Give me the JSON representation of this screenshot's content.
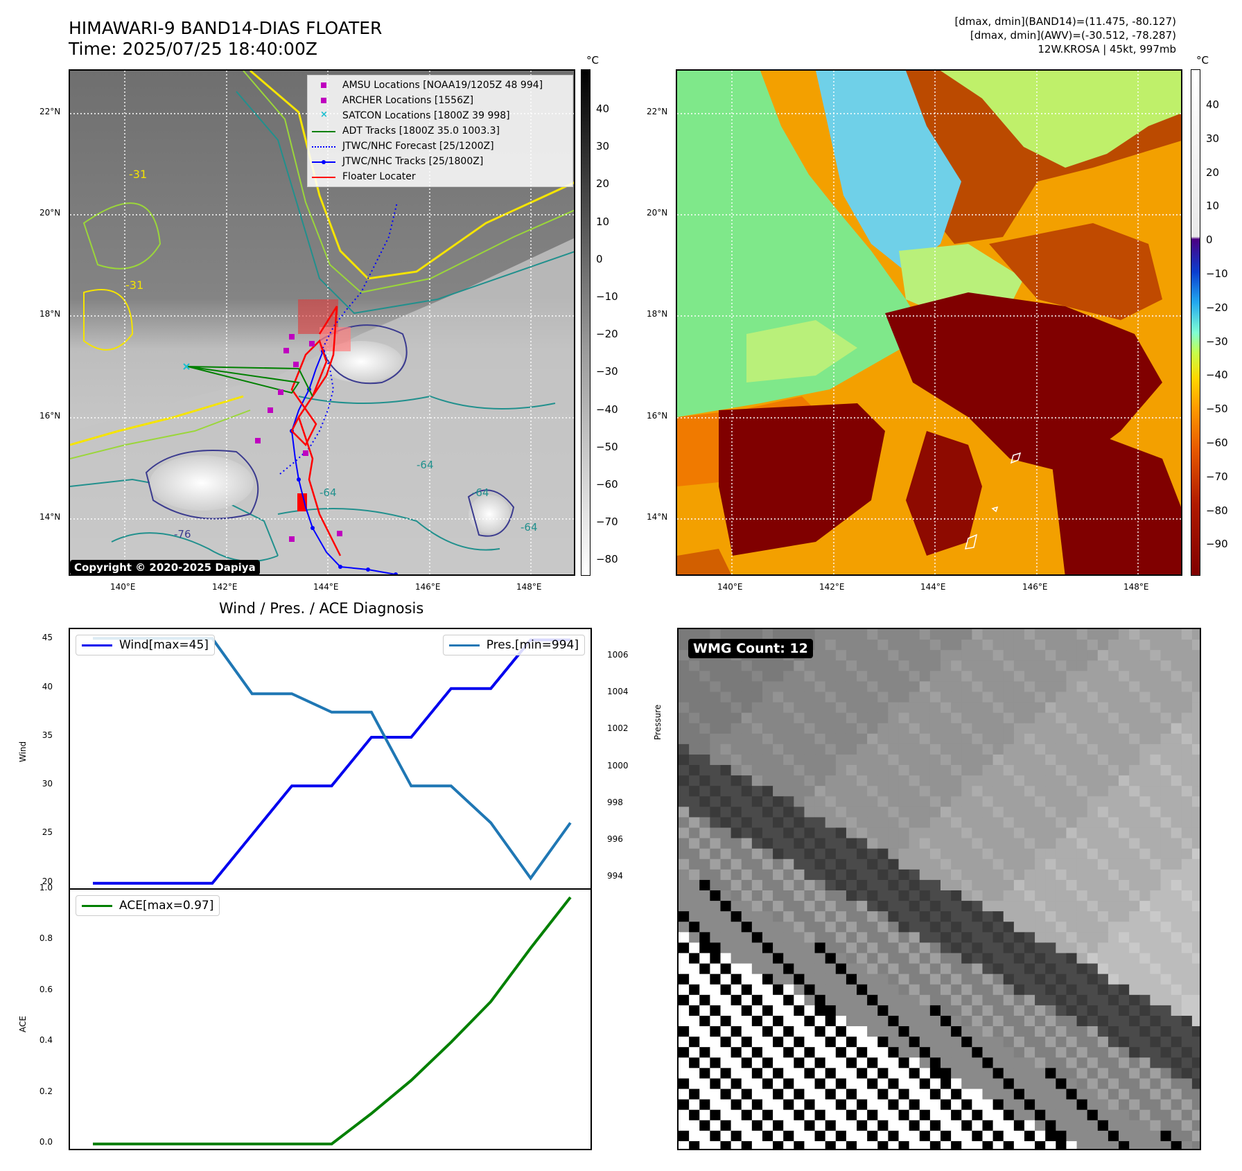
{
  "header": {
    "title_line1": "HIMAWARI-9 BAND14-DIAS FLOATER",
    "title_line2": "Time: 2025/07/25 18:40:00Z",
    "stats_line1": "[dmax, dmin](BAND14)=(11.475, -80.127)",
    "stats_line2": "[dmax, dmin](AWV)=(-30.512, -78.287)",
    "stats_line3": "12W.KROSA | 45kt, 997mb"
  },
  "map": {
    "lat_labels": [
      "22°N",
      "20°N",
      "18°N",
      "16°N",
      "14°N"
    ],
    "lon_labels": [
      "140°E",
      "142°E",
      "144°E",
      "146°E",
      "148°E"
    ],
    "copyright": "Copyright © 2020-2025 Dapiya",
    "legend": [
      {
        "label": "AMSU Locations [NOAA19/1205Z 48 994]",
        "kind": "square",
        "color": "#bf00bf"
      },
      {
        "label": "ARCHER Locations [1556Z]",
        "kind": "square",
        "color": "#bf00bf"
      },
      {
        "label": "SATCON Locations [1800Z 39 998]",
        "kind": "x",
        "color": "#17becf"
      },
      {
        "label": "ADT Tracks [1800Z 35.0 1003.3]",
        "kind": "line",
        "color": "#008000"
      },
      {
        "label": "JTWC/NHC Forecast [25/1200Z]",
        "kind": "dotted",
        "color": "#0000ff"
      },
      {
        "label": "JTWC/NHC Tracks [25/1800Z]",
        "kind": "line-dot",
        "color": "#0000ff"
      },
      {
        "label": "Floater Locater",
        "kind": "line",
        "color": "#ff0000"
      }
    ],
    "gray_colorbar": {
      "unit": "°C",
      "ticks": [
        "40",
        "30",
        "20",
        "10",
        "0",
        "−10",
        "−20",
        "−30",
        "−40",
        "−50",
        "−60",
        "−70",
        "−80"
      ]
    },
    "color_colorbar": {
      "unit": "°C",
      "ticks": [
        "40",
        "30",
        "20",
        "10",
        "0",
        "−10",
        "−20",
        "−30",
        "−40",
        "−50",
        "−60",
        "−70",
        "−80",
        "−90"
      ]
    },
    "contour_labels": [
      "-31",
      "-31",
      "-64",
      "-64",
      "-64",
      "-64",
      "-76"
    ]
  },
  "diagnosis": {
    "title": "Wind / Pres. / ACE Diagnosis",
    "wmg_label": "WMG Count: 12"
  },
  "chart_data": [
    {
      "type": "line",
      "title": "Wind / Pres. / ACE Diagnosis",
      "ylabel": "Wind",
      "ylabel_right": "Pressure",
      "ylim": [
        19.2,
        46.1
      ],
      "ylim_right": [
        993.3,
        1007.5
      ],
      "yticks": [
        "20",
        "25",
        "30",
        "35",
        "40",
        "45"
      ],
      "yticks_right": [
        "994",
        "996",
        "998",
        "1000",
        "1002",
        "1004",
        "1006"
      ],
      "series": [
        {
          "name": "Wind[max=45]",
          "axis": "left",
          "color": "#0000ee",
          "values": [
            20,
            20,
            20,
            20,
            25,
            30,
            30,
            35,
            35,
            40,
            40,
            45,
            45
          ]
        },
        {
          "name": "Pres.[min=994]",
          "axis": "right",
          "color": "#1f77b4",
          "values": [
            1007,
            1007,
            1007,
            1007,
            1004,
            1004,
            1003,
            1003,
            999,
            999,
            997,
            994,
            997
          ]
        }
      ]
    },
    {
      "type": "line",
      "ylabel": "ACE",
      "ylim": [
        -0.03,
        1.0
      ],
      "yticks": [
        "0.0",
        "0.2",
        "0.4",
        "0.6",
        "0.8",
        "1.0"
      ],
      "series": [
        {
          "name": "ACE[max=0.97]",
          "color": "#008000",
          "values": [
            0,
            0,
            0,
            0,
            0,
            0,
            0,
            0.12,
            0.25,
            0.4,
            0.56,
            0.77,
            0.97
          ]
        }
      ]
    }
  ]
}
